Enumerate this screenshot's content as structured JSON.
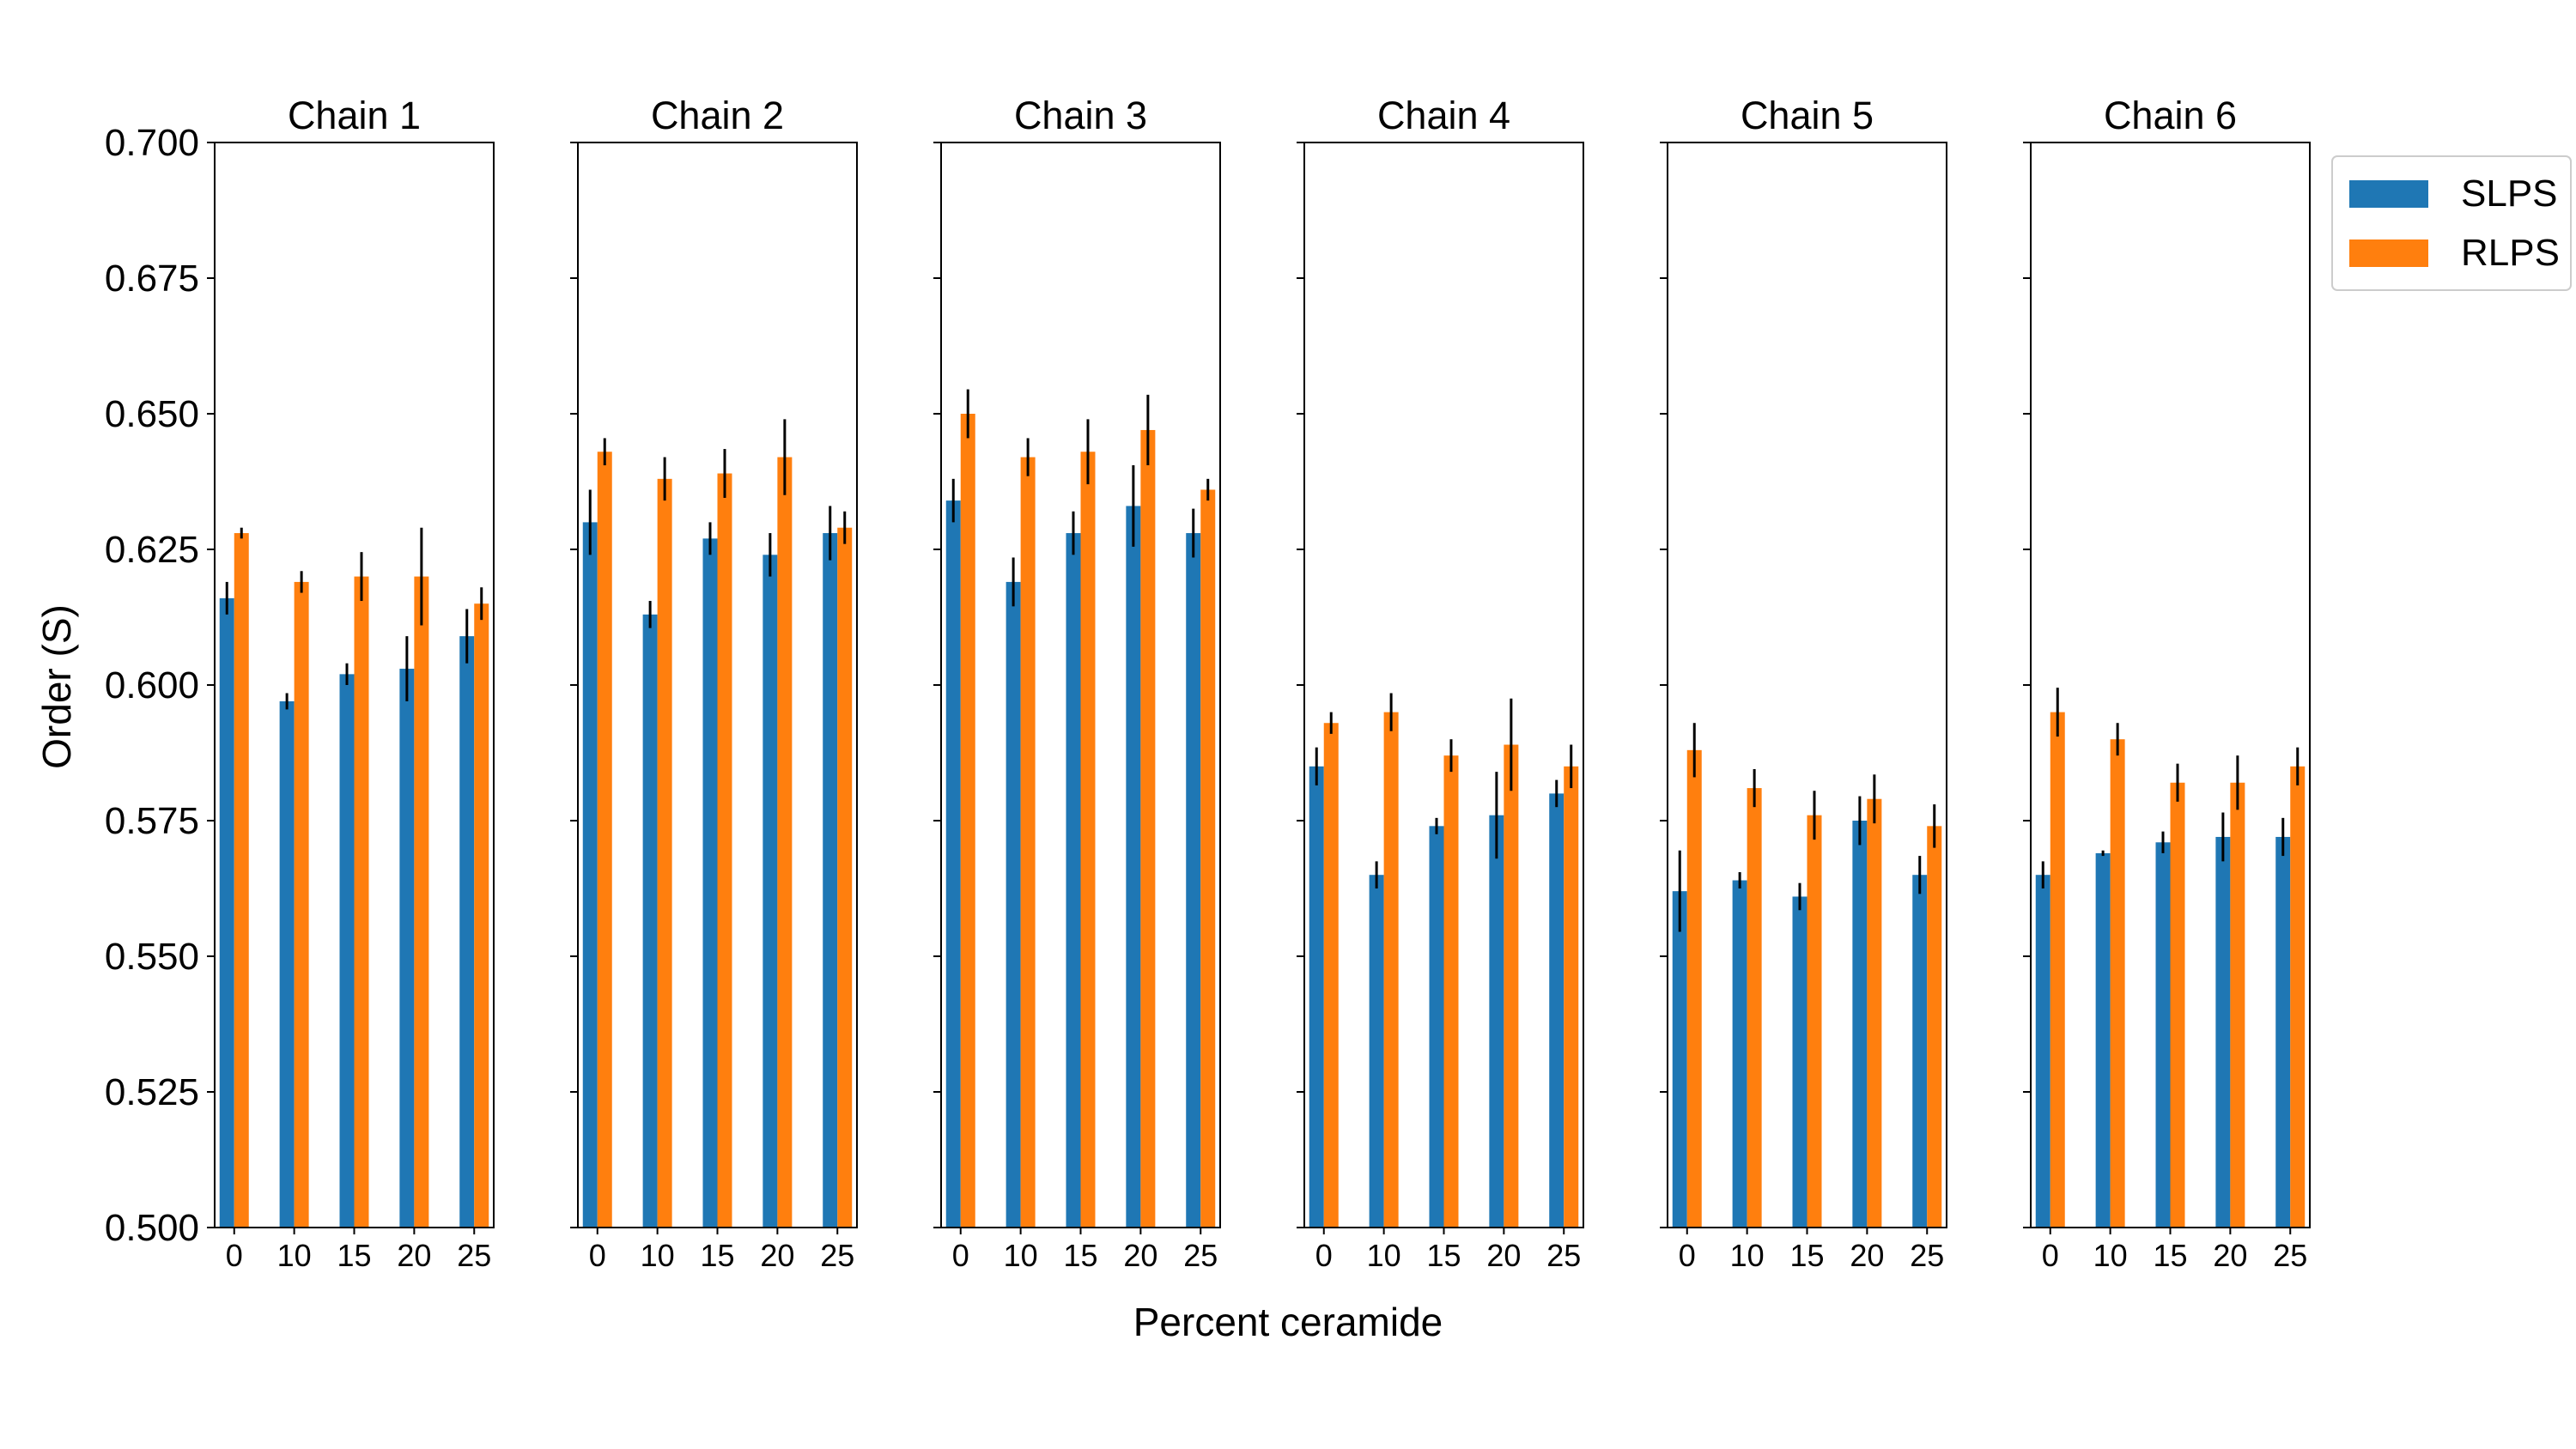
{
  "chart_data": [
    {
      "type": "bar",
      "title": "Chain 1",
      "categories": [
        "0",
        "10",
        "15",
        "20",
        "25"
      ],
      "series": [
        {
          "name": "SLPS",
          "values": [
            0.616,
            0.597,
            0.602,
            0.603,
            0.609
          ],
          "errors": [
            0.003,
            0.0015,
            0.002,
            0.006,
            0.005
          ]
        },
        {
          "name": "RLPS",
          "values": [
            0.628,
            0.619,
            0.62,
            0.62,
            0.615
          ],
          "errors": [
            0.001,
            0.002,
            0.0045,
            0.009,
            0.003
          ]
        }
      ]
    },
    {
      "type": "bar",
      "title": "Chain 2",
      "categories": [
        "0",
        "10",
        "15",
        "20",
        "25"
      ],
      "series": [
        {
          "name": "SLPS",
          "values": [
            0.63,
            0.613,
            0.627,
            0.624,
            0.628
          ],
          "errors": [
            0.006,
            0.0025,
            0.003,
            0.004,
            0.005
          ]
        },
        {
          "name": "RLPS",
          "values": [
            0.643,
            0.638,
            0.639,
            0.642,
            0.629
          ],
          "errors": [
            0.0025,
            0.004,
            0.0045,
            0.007,
            0.003
          ]
        }
      ]
    },
    {
      "type": "bar",
      "title": "Chain 3",
      "categories": [
        "0",
        "10",
        "15",
        "20",
        "25"
      ],
      "series": [
        {
          "name": "SLPS",
          "values": [
            0.634,
            0.619,
            0.628,
            0.633,
            0.628
          ],
          "errors": [
            0.004,
            0.0045,
            0.004,
            0.0075,
            0.0045
          ]
        },
        {
          "name": "RLPS",
          "values": [
            0.65,
            0.642,
            0.643,
            0.647,
            0.636
          ],
          "errors": [
            0.0045,
            0.0035,
            0.006,
            0.0065,
            0.002
          ]
        }
      ]
    },
    {
      "type": "bar",
      "title": "Chain 4",
      "categories": [
        "0",
        "10",
        "15",
        "20",
        "25"
      ],
      "series": [
        {
          "name": "SLPS",
          "values": [
            0.585,
            0.565,
            0.574,
            0.576,
            0.58
          ],
          "errors": [
            0.0035,
            0.0025,
            0.0015,
            0.008,
            0.0025
          ]
        },
        {
          "name": "RLPS",
          "values": [
            0.593,
            0.595,
            0.587,
            0.589,
            0.585
          ],
          "errors": [
            0.002,
            0.0035,
            0.003,
            0.0085,
            0.004
          ]
        }
      ]
    },
    {
      "type": "bar",
      "title": "Chain 5",
      "categories": [
        "0",
        "10",
        "15",
        "20",
        "25"
      ],
      "series": [
        {
          "name": "SLPS",
          "values": [
            0.562,
            0.564,
            0.561,
            0.575,
            0.565
          ],
          "errors": [
            0.0075,
            0.0015,
            0.0025,
            0.0045,
            0.0035
          ]
        },
        {
          "name": "RLPS",
          "values": [
            0.588,
            0.581,
            0.576,
            0.579,
            0.574
          ],
          "errors": [
            0.005,
            0.0035,
            0.0045,
            0.0045,
            0.004
          ]
        }
      ]
    },
    {
      "type": "bar",
      "title": "Chain 6",
      "categories": [
        "0",
        "10",
        "15",
        "20",
        "25"
      ],
      "series": [
        {
          "name": "SLPS",
          "values": [
            0.565,
            0.569,
            0.571,
            0.572,
            0.572
          ],
          "errors": [
            0.0025,
            0.0005,
            0.002,
            0.0045,
            0.0035
          ]
        },
        {
          "name": "RLPS",
          "values": [
            0.595,
            0.59,
            0.582,
            0.582,
            0.585
          ],
          "errors": [
            0.0045,
            0.003,
            0.0035,
            0.005,
            0.0035
          ]
        }
      ]
    }
  ],
  "shared": {
    "ylabel": "Order (S)",
    "xlabel": "Percent ceramide",
    "ylim": [
      0.5,
      0.7
    ],
    "yticks": [
      "0.500",
      "0.525",
      "0.550",
      "0.575",
      "0.600",
      "0.625",
      "0.650",
      "0.675",
      "0.700"
    ],
    "grid": false,
    "legend": {
      "position": "right",
      "entries": [
        "SLPS",
        "RLPS"
      ]
    },
    "colors": {
      "SLPS": "#1f77b4",
      "RLPS": "#ff7f0e",
      "error_bar": "#000000"
    }
  }
}
